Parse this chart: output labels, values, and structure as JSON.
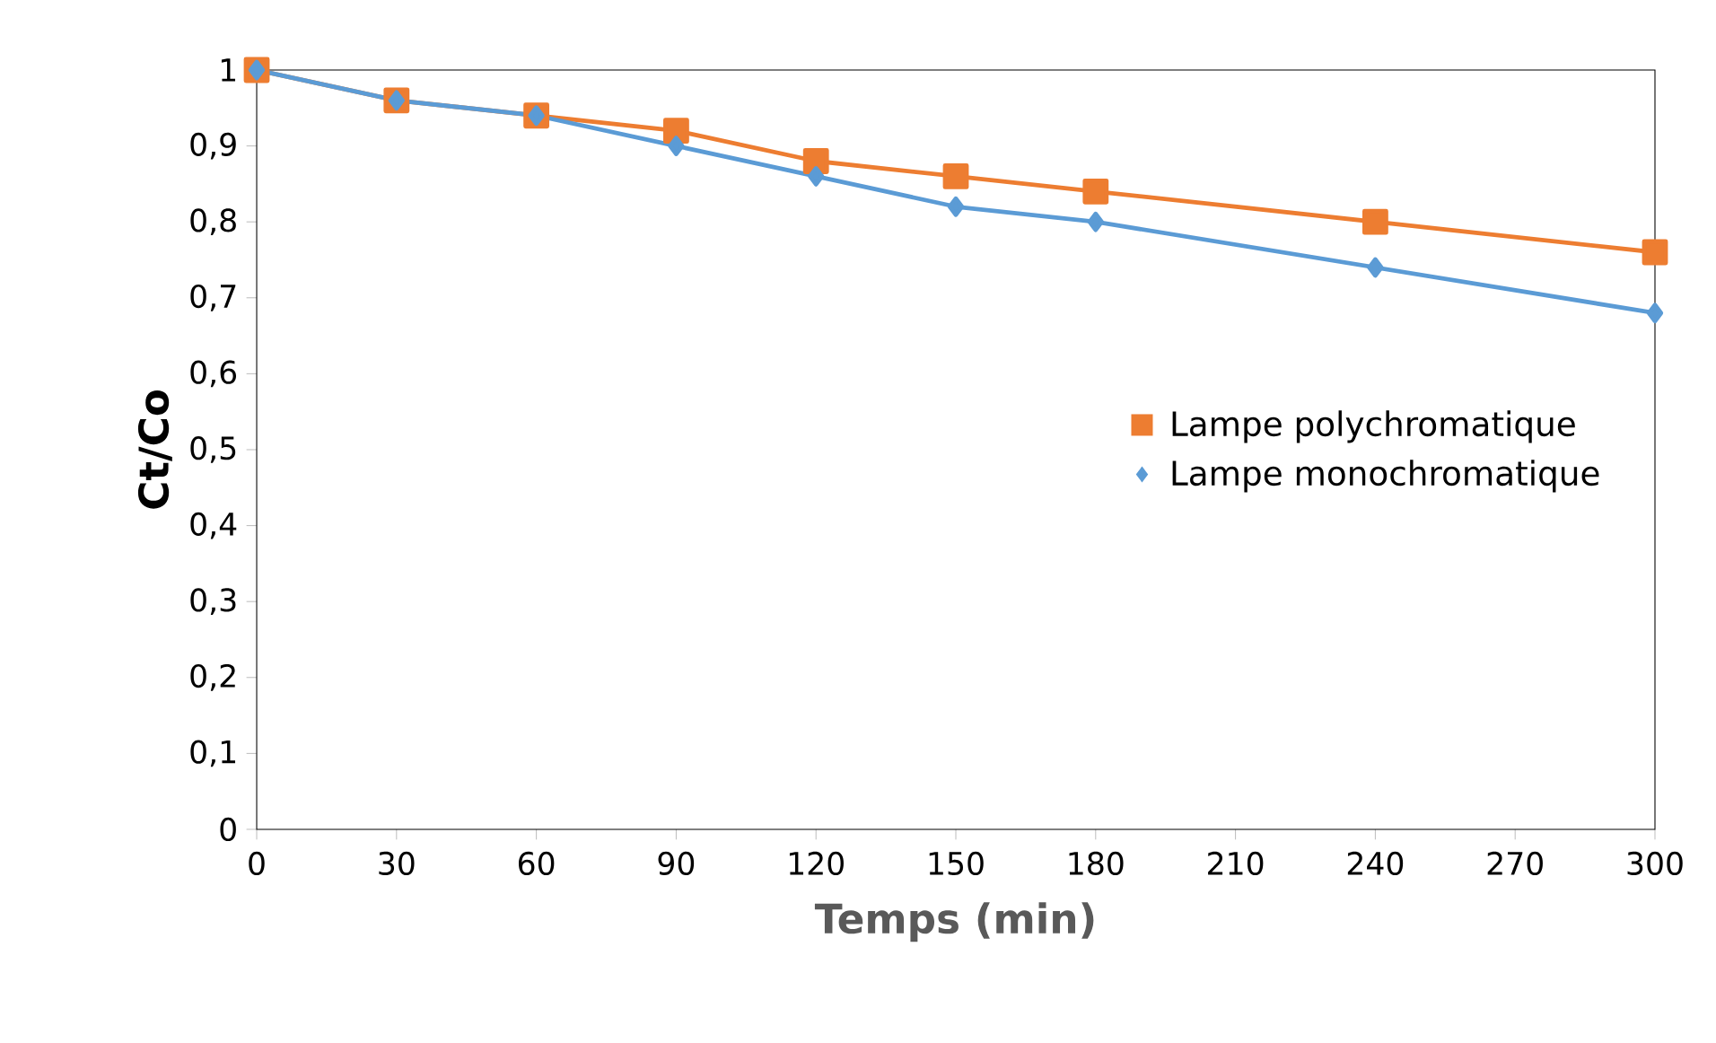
{
  "chart_data": {
    "type": "line",
    "xlabel": "Temps (min)",
    "ylabel": "Ct/Co",
    "x": [
      0,
      30,
      60,
      90,
      120,
      150,
      180,
      240,
      300
    ],
    "series": [
      {
        "name": "Lampe polychromatique",
        "color": "#ed7d31",
        "marker": "square",
        "values": [
          1,
          0.96,
          0.94,
          0.92,
          0.88,
          0.86,
          0.84,
          0.8,
          0.76
        ]
      },
      {
        "name": "Lampe monochromatique",
        "color": "#5b9bd5",
        "marker": "diamond",
        "values": [
          1,
          0.96,
          0.94,
          0.9,
          0.86,
          0.82,
          0.8,
          0.74,
          0.68
        ]
      }
    ],
    "xlim": [
      0,
      300
    ],
    "xticks": [
      0,
      30,
      60,
      90,
      120,
      150,
      180,
      210,
      240,
      270,
      300
    ],
    "ylim": [
      0,
      1
    ],
    "yticks": [
      0,
      {
        "value": 0.1,
        "label": "0,1"
      },
      {
        "value": 0.2,
        "label": "0,2"
      },
      {
        "value": 0.3,
        "label": "0,3"
      },
      {
        "value": 0.4,
        "label": "0,4"
      },
      {
        "value": 0.5,
        "label": "0,5"
      },
      {
        "value": 0.6,
        "label": "0,6"
      },
      {
        "value": 0.7,
        "label": "0,7"
      },
      {
        "value": 0.8,
        "label": "0,8"
      },
      {
        "value": 0.9,
        "label": "0,9"
      },
      1
    ],
    "grid": false,
    "legend": "right",
    "line_style": "solid"
  }
}
